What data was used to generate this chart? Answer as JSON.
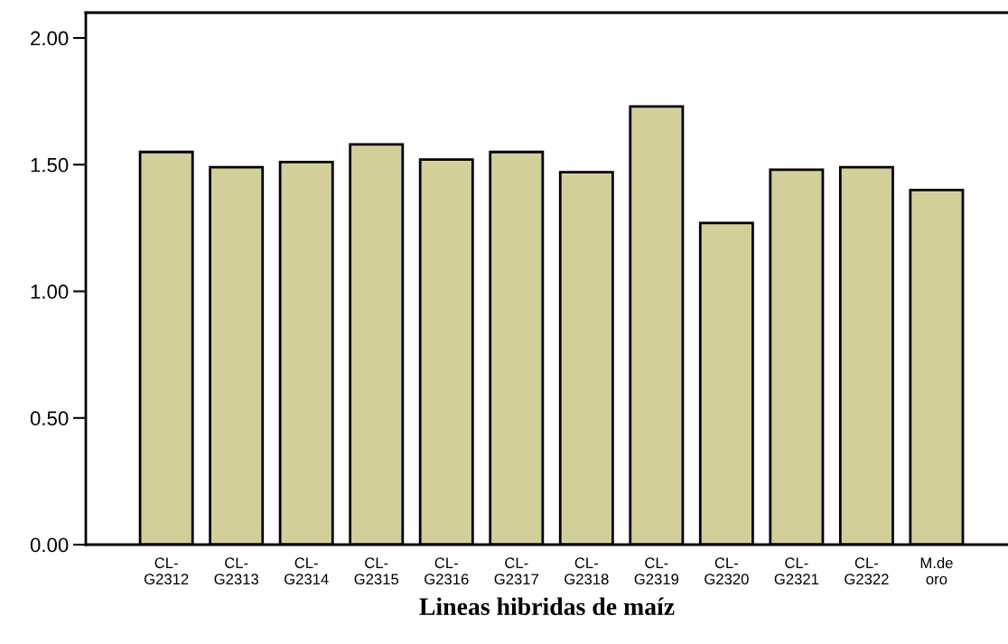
{
  "chart_data": {
    "type": "bar",
    "categories": [
      "CL-\nG2312",
      "CL-\nG2313",
      "CL-\nG2314",
      "CL-\nG2315",
      "CL-\nG2316",
      "CL-\nG2317",
      "CL-\nG2318",
      "CL-\nG2319",
      "CL-\nG2320",
      "CL-\nG2321",
      "CL-\nG2322",
      "M.de\noro"
    ],
    "values": [
      1.55,
      1.49,
      1.51,
      1.58,
      1.52,
      1.55,
      1.47,
      1.73,
      1.27,
      1.48,
      1.49,
      1.4
    ],
    "color": "#d3cf98",
    "xlabel": "Lineas hibridas de maíz",
    "ylim": [
      0,
      2.1
    ],
    "yticks": [
      {
        "value": 0,
        "label": "0.00"
      },
      {
        "value": 0.5,
        "label": "0.50"
      },
      {
        "value": 1,
        "label": "1.00"
      },
      {
        "value": 1.5,
        "label": "1.50"
      },
      {
        "value": 2,
        "label": "2.00"
      }
    ],
    "grid": false
  }
}
